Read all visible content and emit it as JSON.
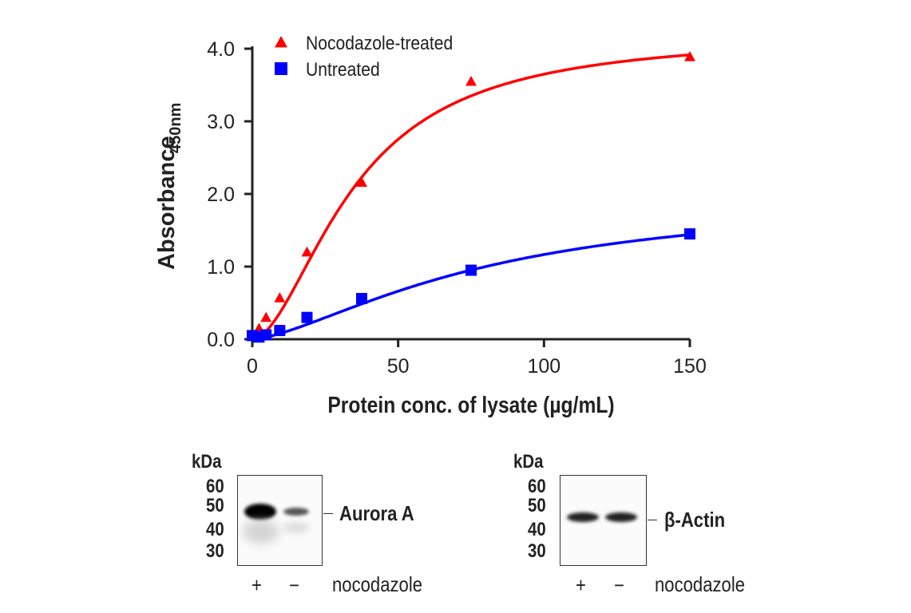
{
  "chart_data": {
    "type": "scatter",
    "xlabel": "Protein conc. of lysate (µg/mL)",
    "ylabel": "Absorbance",
    "ylabel_sub": "450nm",
    "xlim": [
      0,
      150
    ],
    "ylim": [
      0,
      4.0
    ],
    "xticks": [
      "0",
      "50",
      "100",
      "150"
    ],
    "xtick_values": [
      0,
      50,
      100,
      150
    ],
    "yticks": [
      "0.0",
      "1.0",
      "2.0",
      "3.0",
      "4.0"
    ],
    "ytick_values": [
      0,
      1,
      2,
      3,
      4
    ],
    "grid": false,
    "legend_position": "top-left",
    "series": [
      {
        "name": "Nocodazole-treated",
        "marker": "triangle",
        "color": "#ff0000",
        "x": [
          0,
          2.3,
          4.7,
          9.4,
          18.75,
          37.5,
          75,
          150
        ],
        "y": [
          0.05,
          0.15,
          0.3,
          0.57,
          1.2,
          2.16,
          3.55,
          3.89
        ],
        "fit": {
          "top": 4.2,
          "ec50": 35,
          "hill": 1.8
        }
      },
      {
        "name": "Untreated",
        "marker": "square",
        "color": "#0000ff",
        "x": [
          0,
          2.3,
          4.7,
          9.4,
          18.75,
          37.5,
          75,
          150
        ],
        "y": [
          0.05,
          0.03,
          0.06,
          0.12,
          0.3,
          0.56,
          0.95,
          1.45
        ],
        "fit": {
          "top": 2.0,
          "ec50": 80,
          "hill": 1.5
        }
      }
    ]
  },
  "blots": [
    {
      "kda_label": "kDa",
      "markers": [
        "60",
        "50",
        "40",
        "30"
      ],
      "target": "Aurora A",
      "lanes": [
        "+",
        "−"
      ],
      "treatment": "nocodazole",
      "band_intensity": [
        1.0,
        0.45
      ]
    },
    {
      "kda_label": "kDa",
      "markers": [
        "60",
        "50",
        "40",
        "30"
      ],
      "target": "β-Actin",
      "lanes": [
        "+",
        "−"
      ],
      "treatment": "nocodazole",
      "band_intensity": [
        0.85,
        0.85
      ]
    }
  ]
}
